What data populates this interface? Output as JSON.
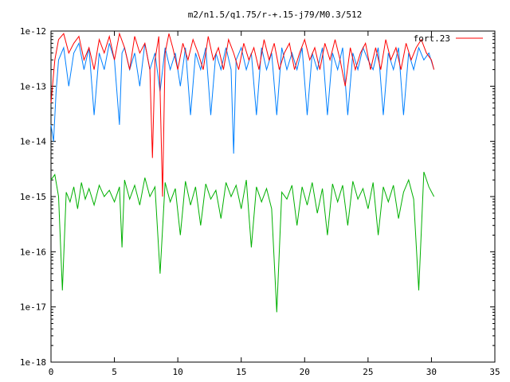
{
  "chart_data": {
    "type": "line",
    "title": "m2/n1.5/q1.75/r-+.15-j79/M0.3/512",
    "xlabel": "",
    "ylabel": "",
    "xlim": [
      0,
      35
    ],
    "ylim": [
      1e-18,
      1e-12
    ],
    "yscale": "log",
    "grid": false,
    "legend_position": "top-right",
    "xticks": [
      0,
      5,
      10,
      15,
      20,
      25,
      30,
      35
    ],
    "xtick_labels": [
      "0",
      "5",
      "10",
      "15",
      "20",
      "25",
      "30",
      "35"
    ],
    "yticks": [
      1e-18,
      1e-17,
      1e-16,
      1e-15,
      1e-14,
      1e-13,
      1e-12
    ],
    "ytick_labels": [
      "1e-18",
      "1e-17",
      "1e-16",
      "1e-15",
      "1e-14",
      "1e-13",
      "1e-12"
    ],
    "series": [
      {
        "name": "fort.23",
        "color": "#ff0000",
        "x": [
          0,
          0.3,
          0.6,
          1.0,
          1.4,
          1.8,
          2.2,
          2.6,
          3.0,
          3.4,
          3.8,
          4.2,
          4.6,
          5.0,
          5.4,
          5.8,
          6.2,
          6.6,
          7.0,
          7.4,
          7.8,
          8.0,
          8.2,
          8.5,
          8.8,
          9.0,
          9.3,
          9.6,
          10.0,
          10.4,
          10.8,
          11.2,
          11.6,
          12.0,
          12.4,
          12.8,
          13.2,
          13.6,
          14.0,
          14.4,
          14.8,
          15.2,
          15.6,
          16.0,
          16.4,
          16.8,
          17.2,
          17.6,
          18.0,
          18.4,
          18.8,
          19.2,
          19.6,
          20.0,
          20.4,
          20.8,
          21.2,
          21.6,
          22.0,
          22.4,
          22.8,
          23.2,
          23.6,
          24.0,
          24.4,
          24.8,
          25.2,
          25.6,
          26.0,
          26.4,
          26.8,
          27.2,
          27.6,
          28.0,
          28.4,
          28.8,
          29.2,
          29.6,
          30.0,
          30.2
        ],
        "y": [
          5e-14,
          3e-13,
          7e-13,
          9e-13,
          4e-13,
          6e-13,
          8e-13,
          3e-13,
          5e-13,
          2e-13,
          7e-13,
          4e-13,
          8e-13,
          3e-13,
          9e-13,
          5e-13,
          2e-13,
          8e-13,
          4e-13,
          6e-13,
          2e-13,
          5e-15,
          3e-13,
          8e-13,
          1e-15,
          4e-13,
          9e-13,
          5e-13,
          2e-13,
          6e-13,
          3e-13,
          7e-13,
          4e-13,
          2e-13,
          8e-13,
          3e-13,
          5e-13,
          2e-13,
          7e-13,
          4e-13,
          2e-13,
          6e-13,
          3e-13,
          5e-13,
          2e-13,
          7e-13,
          3e-13,
          6e-13,
          2e-13,
          4e-13,
          6e-13,
          2e-13,
          4e-13,
          7e-13,
          3e-13,
          5e-13,
          2e-13,
          6e-13,
          3e-13,
          7e-13,
          3e-13,
          1e-13,
          5e-13,
          2e-13,
          4e-13,
          6e-13,
          2e-13,
          5e-13,
          2e-13,
          7e-13,
          3e-13,
          5e-13,
          2e-13,
          6e-13,
          3e-13,
          5e-13,
          7e-13,
          4e-13,
          3e-13,
          2e-13
        ]
      },
      {
        "name": "",
        "color": "#0080ff",
        "x": [
          0,
          0.2,
          0.4,
          0.6,
          1.0,
          1.4,
          1.8,
          2.2,
          2.6,
          3.0,
          3.4,
          3.8,
          4.2,
          4.6,
          5.0,
          5.4,
          5.6,
          5.8,
          6.2,
          6.6,
          7.0,
          7.4,
          7.8,
          8.2,
          8.6,
          9.0,
          9.4,
          9.8,
          10.2,
          10.6,
          11.0,
          11.4,
          11.8,
          12.2,
          12.6,
          13.0,
          13.4,
          13.8,
          14.2,
          14.4,
          14.6,
          15.0,
          15.4,
          15.8,
          16.2,
          16.6,
          17.0,
          17.4,
          17.8,
          18.2,
          18.6,
          19.0,
          19.4,
          19.8,
          20.2,
          20.6,
          21.0,
          21.4,
          21.8,
          22.2,
          22.6,
          23.0,
          23.4,
          23.8,
          24.2,
          24.6,
          25.0,
          25.4,
          25.8,
          26.2,
          26.6,
          27.0,
          27.4,
          27.8,
          28.2,
          28.6,
          29.0,
          29.4,
          29.8,
          30.2
        ],
        "y": [
          2e-14,
          1e-14,
          8e-14,
          3e-13,
          5e-13,
          1e-13,
          4e-13,
          6e-13,
          2e-13,
          5e-13,
          3e-14,
          4e-13,
          2e-13,
          6e-13,
          3e-13,
          2e-14,
          4e-13,
          5e-13,
          2e-13,
          4e-13,
          1e-13,
          6e-13,
          2e-13,
          4e-13,
          8e-14,
          5e-13,
          2e-13,
          4e-13,
          1e-13,
          5e-13,
          3e-14,
          4e-13,
          2e-13,
          5e-13,
          3e-14,
          4e-13,
          2e-13,
          5e-13,
          2e-13,
          6e-15,
          3e-13,
          5e-13,
          2e-13,
          4e-13,
          3e-14,
          5e-13,
          2e-13,
          4e-13,
          3e-14,
          5e-13,
          2e-13,
          4e-13,
          2e-13,
          5e-13,
          3e-14,
          4e-13,
          2e-13,
          5e-13,
          3e-14,
          4e-13,
          2e-13,
          5e-13,
          3e-14,
          4e-13,
          2e-13,
          5e-13,
          3e-13,
          2e-13,
          5e-13,
          3e-14,
          4e-13,
          2e-13,
          5e-13,
          3e-14,
          4e-13,
          2e-13,
          5e-13,
          3e-13,
          4e-13,
          2e-13
        ]
      },
      {
        "name": "",
        "color": "#00b000",
        "x": [
          0,
          0.3,
          0.6,
          0.9,
          1.2,
          1.5,
          1.8,
          2.1,
          2.4,
          2.7,
          3.0,
          3.4,
          3.8,
          4.2,
          4.6,
          5.0,
          5.4,
          5.6,
          5.8,
          6.2,
          6.6,
          7.0,
          7.4,
          7.8,
          8.2,
          8.6,
          9.0,
          9.4,
          9.8,
          10.2,
          10.6,
          11.0,
          11.4,
          11.8,
          12.2,
          12.6,
          13.0,
          13.4,
          13.8,
          14.2,
          14.6,
          15.0,
          15.4,
          15.8,
          16.2,
          16.6,
          17.0,
          17.4,
          17.8,
          18.2,
          18.6,
          19.0,
          19.4,
          19.8,
          20.2,
          20.6,
          21.0,
          21.4,
          21.8,
          22.2,
          22.6,
          23.0,
          23.4,
          23.8,
          24.2,
          24.6,
          25.0,
          25.4,
          25.8,
          26.2,
          26.6,
          27.0,
          27.4,
          27.8,
          28.2,
          28.6,
          29.0,
          29.4,
          29.8,
          30.2
        ],
        "y": [
          2e-15,
          2.5e-15,
          1e-15,
          2e-17,
          1.2e-15,
          8e-16,
          1.5e-15,
          6e-16,
          1.8e-15,
          9e-16,
          1.4e-15,
          7e-16,
          1.6e-15,
          1e-15,
          1.3e-15,
          8e-16,
          1.5e-15,
          1.2e-16,
          2e-15,
          9e-16,
          1.6e-15,
          7e-16,
          2.2e-15,
          1e-15,
          1.5e-15,
          4e-17,
          1.8e-15,
          8e-16,
          1.4e-15,
          2e-16,
          1.9e-15,
          7e-16,
          1.5e-15,
          3e-16,
          1.7e-15,
          9e-16,
          1.3e-15,
          4e-16,
          1.8e-15,
          1e-15,
          1.6e-15,
          6e-16,
          2e-15,
          1.2e-16,
          1.5e-15,
          8e-16,
          1.4e-15,
          6e-16,
          8e-18,
          1.2e-15,
          9e-16,
          1.6e-15,
          3e-16,
          1.5e-15,
          7e-16,
          1.8e-15,
          5e-16,
          1.4e-15,
          2e-16,
          1.7e-15,
          8e-16,
          1.6e-15,
          3e-16,
          1.9e-15,
          9e-16,
          1.4e-15,
          6e-16,
          1.8e-15,
          2e-16,
          1.5e-15,
          8e-16,
          1.6e-15,
          4e-16,
          1.2e-15,
          2e-15,
          9e-16,
          2e-17,
          2.8e-15,
          1.5e-15,
          1e-15
        ]
      }
    ]
  }
}
